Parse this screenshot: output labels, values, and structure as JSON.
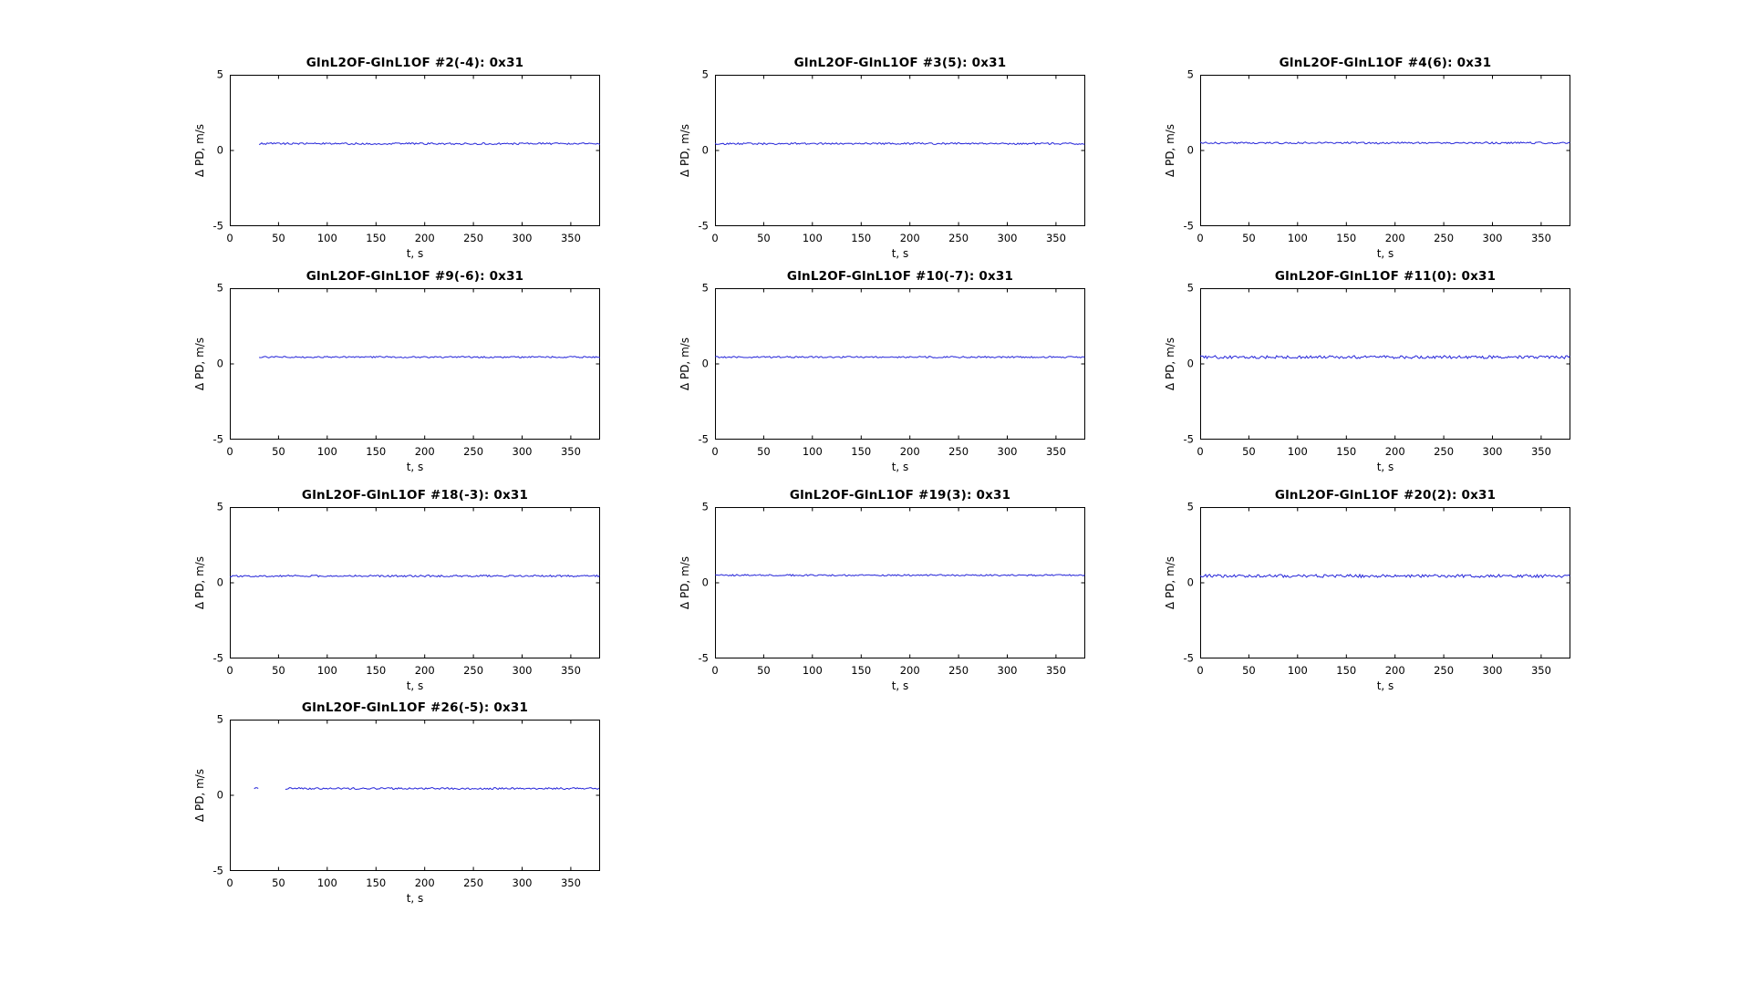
{
  "figure": {
    "background": "#ffffff",
    "axis_color": "#000000",
    "text_color": "#000000"
  },
  "chart_data": [
    {
      "type": "line",
      "title": "GlnL2OF-GlnL1OF #2(-4): 0x31",
      "xlabel": "t, s",
      "ylabel": "Δ PD, m/s",
      "xlim": [
        0,
        380
      ],
      "ylim": [
        -5,
        5
      ],
      "x_ticks": [
        0,
        50,
        100,
        150,
        200,
        250,
        300,
        350
      ],
      "y_ticks": [
        5,
        0,
        -5
      ],
      "grid": false,
      "line_color": "#2525d9",
      "series": [
        {
          "baseline": 0.45,
          "noise_amplitude": 0.06,
          "segments_t": [
            [
              30,
              380
            ]
          ]
        }
      ]
    },
    {
      "type": "line",
      "title": "GlnL2OF-GlnL1OF #3(5): 0x31",
      "xlabel": "t, s",
      "ylabel": "Δ PD, m/s",
      "xlim": [
        0,
        380
      ],
      "ylim": [
        -5,
        5
      ],
      "x_ticks": [
        0,
        50,
        100,
        150,
        200,
        250,
        300,
        350
      ],
      "y_ticks": [
        5,
        0,
        -5
      ],
      "grid": false,
      "line_color": "#2525d9",
      "series": [
        {
          "baseline": 0.45,
          "noise_amplitude": 0.06,
          "segments_t": [
            [
              0,
              380
            ]
          ]
        }
      ]
    },
    {
      "type": "line",
      "title": "GlnL2OF-GlnL1OF #4(6): 0x31",
      "xlabel": "t, s",
      "ylabel": "Δ PD, m/s",
      "xlim": [
        0,
        380
      ],
      "ylim": [
        -5,
        5
      ],
      "x_ticks": [
        0,
        50,
        100,
        150,
        200,
        250,
        300,
        350
      ],
      "y_ticks": [
        5,
        0,
        -5
      ],
      "grid": false,
      "line_color": "#2525d9",
      "series": [
        {
          "baseline": 0.5,
          "noise_amplitude": 0.06,
          "segments_t": [
            [
              0,
              380
            ]
          ]
        }
      ]
    },
    {
      "type": "line",
      "title": "GlnL2OF-GlnL1OF #9(-6): 0x31",
      "xlabel": "t, s",
      "ylabel": "Δ PD, m/s",
      "xlim": [
        0,
        380
      ],
      "ylim": [
        -5,
        5
      ],
      "x_ticks": [
        0,
        50,
        100,
        150,
        200,
        250,
        300,
        350
      ],
      "y_ticks": [
        5,
        0,
        -5
      ],
      "grid": false,
      "line_color": "#2525d9",
      "series": [
        {
          "baseline": 0.45,
          "noise_amplitude": 0.05,
          "segments_t": [
            [
              30,
              380
            ]
          ]
        }
      ]
    },
    {
      "type": "line",
      "title": "GlnL2OF-GlnL1OF #10(-7): 0x31",
      "xlabel": "t, s",
      "ylabel": "Δ PD, m/s",
      "xlim": [
        0,
        380
      ],
      "ylim": [
        -5,
        5
      ],
      "x_ticks": [
        0,
        50,
        100,
        150,
        200,
        250,
        300,
        350
      ],
      "y_ticks": [
        5,
        0,
        -5
      ],
      "grid": false,
      "line_color": "#2525d9",
      "series": [
        {
          "baseline": 0.45,
          "noise_amplitude": 0.05,
          "segments_t": [
            [
              0,
              380
            ]
          ]
        }
      ]
    },
    {
      "type": "line",
      "title": "GlnL2OF-GlnL1OF #11(0): 0x31",
      "xlabel": "t, s",
      "ylabel": "Δ PD, m/s",
      "xlim": [
        0,
        380
      ],
      "ylim": [
        -5,
        5
      ],
      "x_ticks": [
        0,
        50,
        100,
        150,
        200,
        250,
        300,
        350
      ],
      "y_ticks": [
        5,
        0,
        -5
      ],
      "grid": false,
      "line_color": "#2525d9",
      "series": [
        {
          "baseline": 0.45,
          "noise_amplitude": 0.1,
          "segments_t": [
            [
              0,
              380
            ]
          ]
        }
      ]
    },
    {
      "type": "line",
      "title": "GlnL2OF-GlnL1OF #18(-3): 0x31",
      "xlabel": "t, s",
      "ylabel": "Δ PD, m/s",
      "xlim": [
        0,
        380
      ],
      "ylim": [
        -5,
        5
      ],
      "x_ticks": [
        0,
        50,
        100,
        150,
        200,
        250,
        300,
        350
      ],
      "y_ticks": [
        5,
        0,
        -5
      ],
      "grid": false,
      "line_color": "#2525d9",
      "series": [
        {
          "baseline": 0.45,
          "noise_amplitude": 0.06,
          "segments_t": [
            [
              0,
              380
            ]
          ]
        }
      ]
    },
    {
      "type": "line",
      "title": "GlnL2OF-GlnL1OF #19(3): 0x31",
      "xlabel": "t, s",
      "ylabel": "Δ PD, m/s",
      "xlim": [
        0,
        380
      ],
      "ylim": [
        -5,
        5
      ],
      "x_ticks": [
        0,
        50,
        100,
        150,
        200,
        250,
        300,
        350
      ],
      "y_ticks": [
        5,
        0,
        -5
      ],
      "grid": false,
      "line_color": "#2525d9",
      "series": [
        {
          "baseline": 0.5,
          "noise_amplitude": 0.05,
          "segments_t": [
            [
              0,
              380
            ]
          ]
        }
      ]
    },
    {
      "type": "line",
      "title": "GlnL2OF-GlnL1OF #20(2): 0x31",
      "xlabel": "t, s",
      "ylabel": "Δ PD, m/s",
      "xlim": [
        0,
        380
      ],
      "ylim": [
        -5,
        5
      ],
      "x_ticks": [
        0,
        50,
        100,
        150,
        200,
        250,
        300,
        350
      ],
      "y_ticks": [
        5,
        0,
        -5
      ],
      "grid": false,
      "line_color": "#2525d9",
      "series": [
        {
          "baseline": 0.45,
          "noise_amplitude": 0.1,
          "segments_t": [
            [
              0,
              380
            ]
          ]
        }
      ]
    },
    {
      "type": "line",
      "title": "GlnL2OF-GlnL1OF #26(-5): 0x31",
      "xlabel": "t, s",
      "ylabel": "Δ PD, m/s",
      "xlim": [
        0,
        380
      ],
      "ylim": [
        -5,
        5
      ],
      "x_ticks": [
        0,
        50,
        100,
        150,
        200,
        250,
        300,
        350
      ],
      "y_ticks": [
        5,
        0,
        -5
      ],
      "grid": false,
      "line_color": "#2525d9",
      "series": [
        {
          "baseline": 0.45,
          "noise_amplitude": 0.06,
          "segments_t": [
            [
              25,
              30
            ],
            [
              57,
              380
            ]
          ]
        }
      ]
    }
  ]
}
